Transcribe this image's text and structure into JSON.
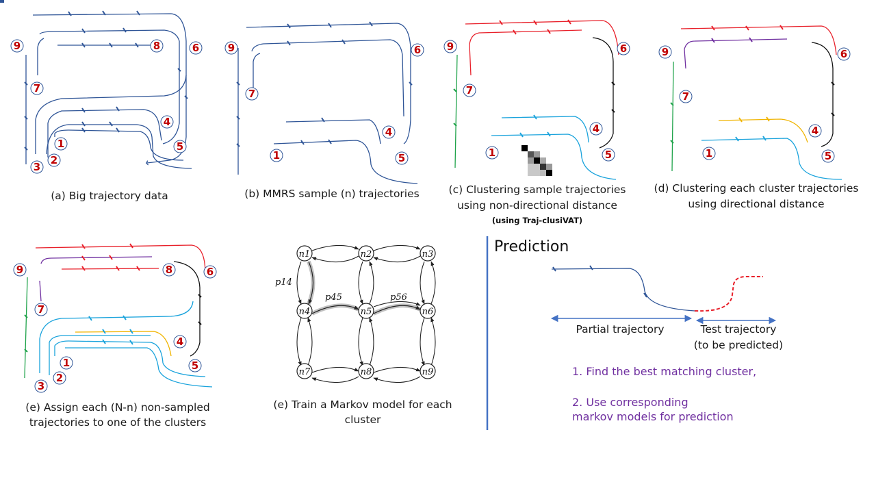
{
  "panels": {
    "a": {
      "caption": "(a) Big trajectory data",
      "nodes": [
        "9",
        "8",
        "6",
        "7",
        "4",
        "1",
        "5",
        "3",
        "2"
      ]
    },
    "b": {
      "caption": "(b) MMRS sample (n) trajectories",
      "nodes": [
        "9",
        "6",
        "7",
        "4",
        "1",
        "5"
      ]
    },
    "c": {
      "caption_line1": "(c) Clustering sample trajectories",
      "caption_line2": "using non-directional distance",
      "caption_bold": "(using Traj-clusiVAT)",
      "nodes": [
        "9",
        "6",
        "7",
        "4",
        "1",
        "5"
      ]
    },
    "d": {
      "caption_line1": "(d) Clustering each cluster trajectories",
      "caption_line2": "using directional distance",
      "nodes": [
        "9",
        "6",
        "7",
        "4",
        "1",
        "5"
      ]
    },
    "e1": {
      "caption_line1": "(e) Assign each (N-n) non-sampled",
      "caption_line2": "trajectories to one of the clusters",
      "nodes": [
        "9",
        "8",
        "6",
        "7",
        "4",
        "1",
        "5",
        "3",
        "2"
      ]
    },
    "e2": {
      "caption_line1": "(e) Train a Markov model for each",
      "caption_line2": "cluster"
    }
  },
  "markov": {
    "nodes": [
      "n1",
      "n2",
      "n3",
      "n4",
      "n5",
      "n6",
      "n7",
      "n8",
      "n9"
    ],
    "prob_labels": {
      "p14": "p14",
      "p45": "p45",
      "p56": "p56"
    }
  },
  "prediction": {
    "title": "Prediction",
    "partial_label": "Partial trajectory",
    "test_label_line1": "Test trajectory",
    "test_label_line2": "(to be predicted)",
    "step1": "1.  Find the best matching cluster,",
    "step2_line1": "2.  Use corresponding",
    "step2_line2": "markov models for prediction"
  },
  "colors": {
    "blue": "#2f5597",
    "red": "#e8202a",
    "purple": "#7030a0",
    "green": "#1fa34a",
    "cyan": "#1aa3dc",
    "gold": "#f0b400",
    "black": "#111111",
    "node_label": "#c00000",
    "divider": "#4472c4"
  }
}
